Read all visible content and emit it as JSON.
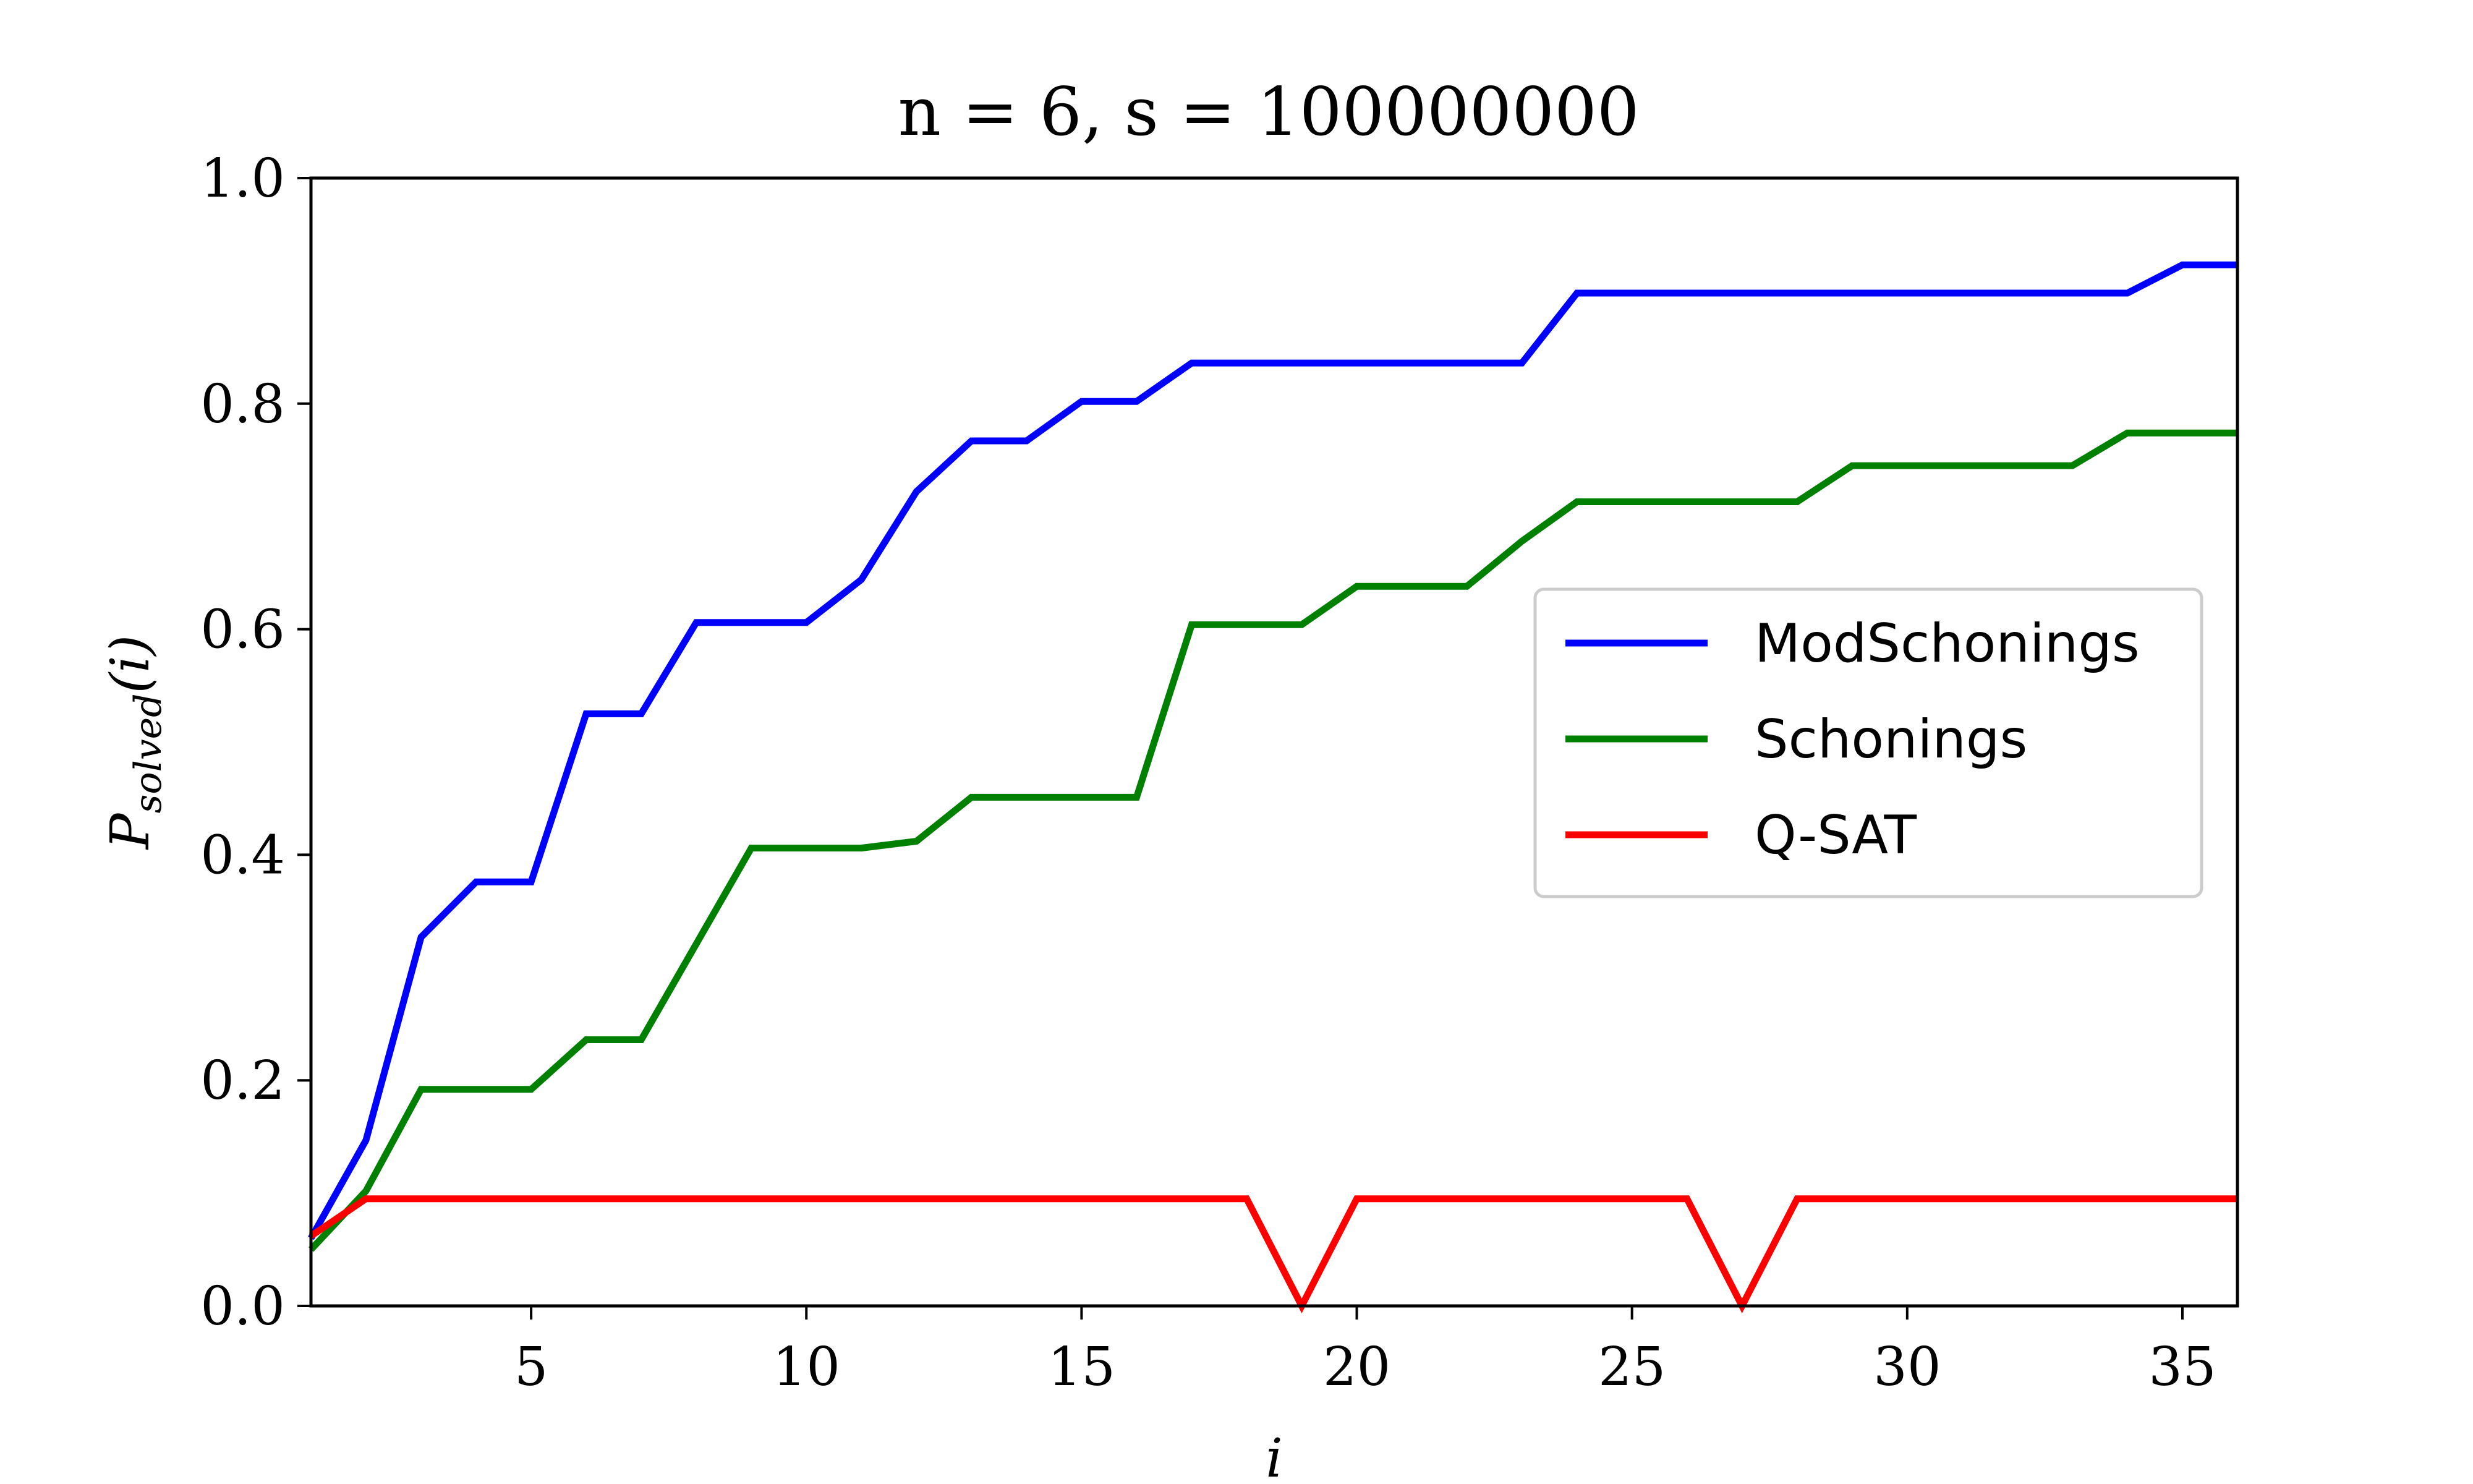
{
  "chart_data": {
    "type": "line",
    "title": "n = 6, s = 100000000",
    "xlabel": "i",
    "ylabel": "P_solved(i)",
    "xlim": [
      1,
      36
    ],
    "ylim": [
      0.0,
      1.0
    ],
    "xticks": [
      5,
      10,
      15,
      20,
      25,
      30,
      35
    ],
    "yticks": [
      0.0,
      0.2,
      0.4,
      0.6,
      0.8,
      1.0
    ],
    "ytick_labels": [
      "0.0",
      "0.2",
      "0.4",
      "0.6",
      "0.8",
      "1.0"
    ],
    "grid": false,
    "legend_position": "center-right",
    "x": [
      1,
      2,
      3,
      4,
      5,
      6,
      7,
      8,
      9,
      10,
      11,
      12,
      13,
      14,
      15,
      16,
      17,
      18,
      19,
      20,
      21,
      22,
      23,
      24,
      25,
      26,
      27,
      28,
      29,
      30,
      31,
      32,
      33,
      34,
      35,
      36
    ],
    "series": [
      {
        "name": "ModSchonings",
        "color": "#0000ff",
        "values": [
          0.06,
          0.147,
          0.327,
          0.376,
          0.376,
          0.525,
          0.525,
          0.606,
          0.606,
          0.606,
          0.644,
          0.722,
          0.767,
          0.767,
          0.802,
          0.802,
          0.836,
          0.836,
          0.836,
          0.836,
          0.836,
          0.836,
          0.836,
          0.898,
          0.898,
          0.898,
          0.898,
          0.898,
          0.898,
          0.898,
          0.898,
          0.898,
          0.898,
          0.898,
          0.923,
          0.923
        ]
      },
      {
        "name": "Schonings",
        "color": "#008000",
        "values": [
          0.05,
          0.102,
          0.192,
          0.192,
          0.192,
          0.236,
          0.236,
          0.321,
          0.406,
          0.406,
          0.406,
          0.412,
          0.451,
          0.451,
          0.451,
          0.451,
          0.604,
          0.604,
          0.604,
          0.638,
          0.638,
          0.638,
          0.678,
          0.713,
          0.713,
          0.713,
          0.713,
          0.713,
          0.745,
          0.745,
          0.745,
          0.745,
          0.745,
          0.774,
          0.774,
          0.774
        ]
      },
      {
        "name": "Q-SAT",
        "color": "#ff0000",
        "values": [
          0.062,
          0.095,
          0.095,
          0.095,
          0.095,
          0.095,
          0.095,
          0.095,
          0.095,
          0.095,
          0.095,
          0.095,
          0.095,
          0.095,
          0.095,
          0.095,
          0.095,
          0.095,
          0.0,
          0.095,
          0.095,
          0.095,
          0.095,
          0.095,
          0.095,
          0.095,
          0.0,
          0.095,
          0.095,
          0.095,
          0.095,
          0.095,
          0.095,
          0.095,
          0.095,
          0.095
        ]
      }
    ]
  }
}
